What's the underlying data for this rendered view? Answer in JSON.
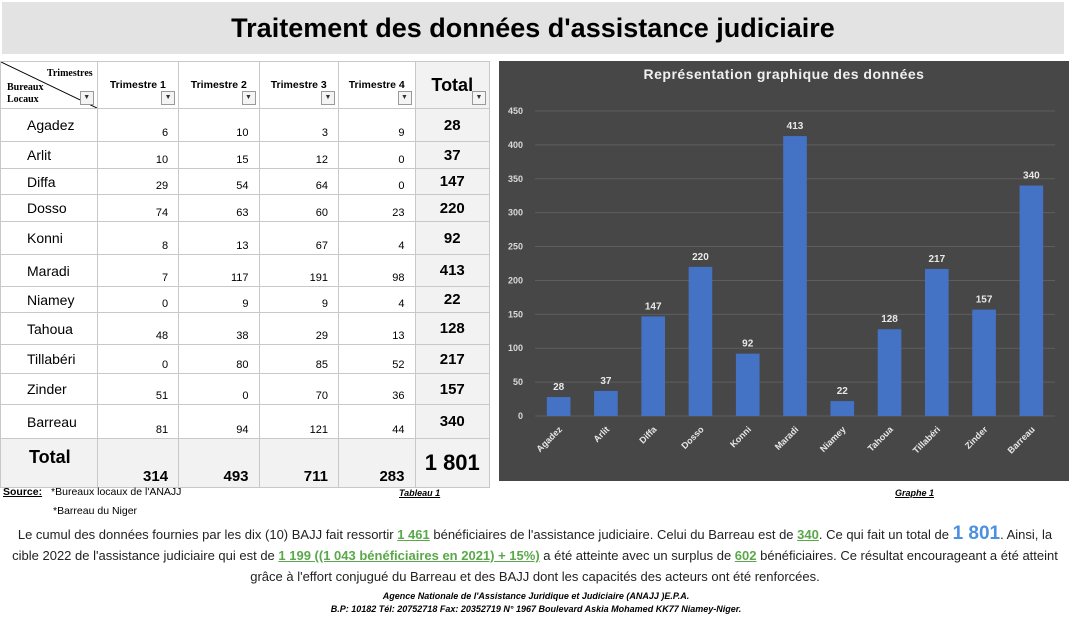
{
  "title": "Traitement des données d'assistance judiciaire",
  "table": {
    "corner_top": "Trimestres",
    "corner_bottom": "Bureaux Locaux",
    "columns": [
      "Trimestre 1",
      "Trimestre 2",
      "Trimestre 3",
      "Trimestre 4"
    ],
    "total_label": "Total",
    "rows": [
      {
        "name": "Agadez",
        "q": [
          "6",
          "10",
          "3",
          "9"
        ],
        "total": "28"
      },
      {
        "name": "Arlit",
        "q": [
          "10",
          "15",
          "12",
          "0"
        ],
        "total": "37"
      },
      {
        "name": "Diffa",
        "q": [
          "29",
          "54",
          "64",
          "0"
        ],
        "total": "147"
      },
      {
        "name": "Dosso",
        "q": [
          "74",
          "63",
          "60",
          "23"
        ],
        "total": "220"
      },
      {
        "name": "Konni",
        "q": [
          "8",
          "13",
          "67",
          "4"
        ],
        "total": "92"
      },
      {
        "name": "Maradi",
        "q": [
          "7",
          "117",
          "191",
          "98"
        ],
        "total": "413"
      },
      {
        "name": "Niamey",
        "q": [
          "0",
          "9",
          "9",
          "4"
        ],
        "total": "22"
      },
      {
        "name": "Tahoua",
        "q": [
          "48",
          "38",
          "29",
          "13"
        ],
        "total": "128"
      },
      {
        "name": "Tillabéri",
        "q": [
          "0",
          "80",
          "85",
          "52"
        ],
        "total": "217"
      },
      {
        "name": "Zinder",
        "q": [
          "51",
          "0",
          "70",
          "36"
        ],
        "total": "157"
      },
      {
        "name": "Barreau",
        "q": [
          "81",
          "94",
          "121",
          "44"
        ],
        "total": "340"
      }
    ],
    "totals_row": {
      "label": "Total",
      "q": [
        "314",
        "493",
        "711",
        "283"
      ],
      "grand": "1 801"
    }
  },
  "chart_data": {
    "type": "bar",
    "title": "Représentation graphique des données",
    "categories": [
      "Agadez",
      "Arlit",
      "Diffa",
      "Dosso",
      "Konni",
      "Maradi",
      "Niamey",
      "Tahoua",
      "Tillabéri",
      "Zinder",
      "Barreau"
    ],
    "values": [
      28,
      37,
      147,
      220,
      92,
      413,
      22,
      128,
      217,
      157,
      340
    ],
    "ylim": [
      0,
      450
    ],
    "yticks": [
      0,
      50,
      100,
      150,
      200,
      250,
      300,
      350,
      400,
      450
    ],
    "grid": true,
    "bar_color": "#4472c4",
    "background": "#474747"
  },
  "source": {
    "label": "Source:",
    "line1": "*Bureaux locaux de l'ANAJJ",
    "line2": "*Barreau du Niger"
  },
  "captions": {
    "table": "Tableau 1",
    "chart": "Graphe 1"
  },
  "paragraph": {
    "t1": "Le cumul des données fournies par les dix (10) BAJJ fait ressortir ",
    "v1": "1 461",
    "t2": " bénéficiaires de l'assistance judiciaire. Celui du Barreau est de ",
    "v2": "340",
    "t3": ". Ce qui fait un total de ",
    "v3": "1 801",
    "t4": ". Ainsi, la cible 2022 de l'assistance judiciaire qui est de ",
    "v4": "1 199 ((1 043 bénéficiaires en 2021) + 15%)",
    "t5": " a été atteinte avec un surplus de ",
    "v5": "602",
    "t6": " bénéficiaires. Ce résultat encourageant a été atteint grâce à l'effort conjugué du Barreau et des BAJJ dont les capacités des acteurs ont été renforcées."
  },
  "agency": {
    "line1": "Agence Nationale de l'Assistance Juridique et Judiciaire (ANAJJ )E.P.A.",
    "line2": "B.P: 10182 Tél: 20752718 Fax: 20352719 N° 1967 Boulevard Askia Mohamed KK77 Niamey-Niger."
  }
}
